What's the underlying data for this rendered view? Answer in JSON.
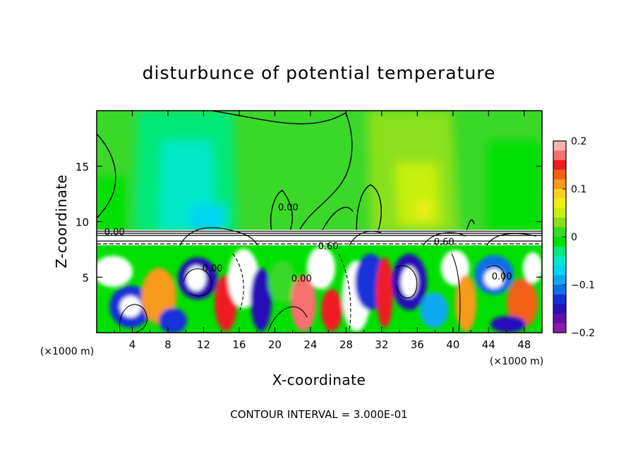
{
  "chart_data": {
    "type": "heatmap",
    "title": "disturbunce of potential temperature",
    "xlabel": "X-coordinate",
    "ylabel": "Z-coordinate",
    "x_unit": "(×1000 m)",
    "footer": "CONTOUR INTERVAL = 3.000E-01",
    "xlim": [
      0,
      50
    ],
    "ylim": [
      0,
      20
    ],
    "x_ticks": [
      4,
      8,
      12,
      16,
      20,
      24,
      28,
      32,
      36,
      40,
      44,
      48
    ],
    "x_tick_labels": [
      "4",
      "8",
      "12",
      "16",
      "20",
      "24",
      "28",
      "32",
      "36",
      "40",
      "44",
      "48"
    ],
    "y_ticks": [
      5,
      10,
      15
    ],
    "y_tick_labels": [
      "5",
      "10",
      "15"
    ],
    "colorbar": {
      "min": -0.2,
      "max": 0.2,
      "ticks": [
        0.2,
        0.1,
        0,
        -0.1,
        -0.2
      ],
      "tick_labels": [
        "0.2",
        "0.1",
        "0",
        "−0.1",
        "−0.2"
      ],
      "colors": [
        "#f7b3b3",
        "#f77070",
        "#ee1c24",
        "#f25e16",
        "#f89a1b",
        "#fcd21e",
        "#f0ee12",
        "#c6ef10",
        "#8ae01a",
        "#3bd82a",
        "#00e000",
        "#00e87a",
        "#00e8c8",
        "#00d4f0",
        "#10a8f0",
        "#1070e8",
        "#1430d8",
        "#2810b8",
        "#6010a8",
        "#8a1aa8"
      ]
    },
    "contour_labels": [
      {
        "text": "0.00",
        "x": 2.0,
        "z": 9.0
      },
      {
        "text": "0.00",
        "x": 21.5,
        "z": 11.2
      },
      {
        "text": "0.60",
        "x": 26.0,
        "z": 7.7
      },
      {
        "text": "0.60",
        "x": 39.0,
        "z": 8.1
      },
      {
        "text": "0.00",
        "x": 45.5,
        "z": 5.0
      },
      {
        "text": "0.00",
        "x": 13.0,
        "z": 5.7
      },
      {
        "text": "0.00",
        "x": 23.0,
        "z": 4.8
      }
    ]
  }
}
